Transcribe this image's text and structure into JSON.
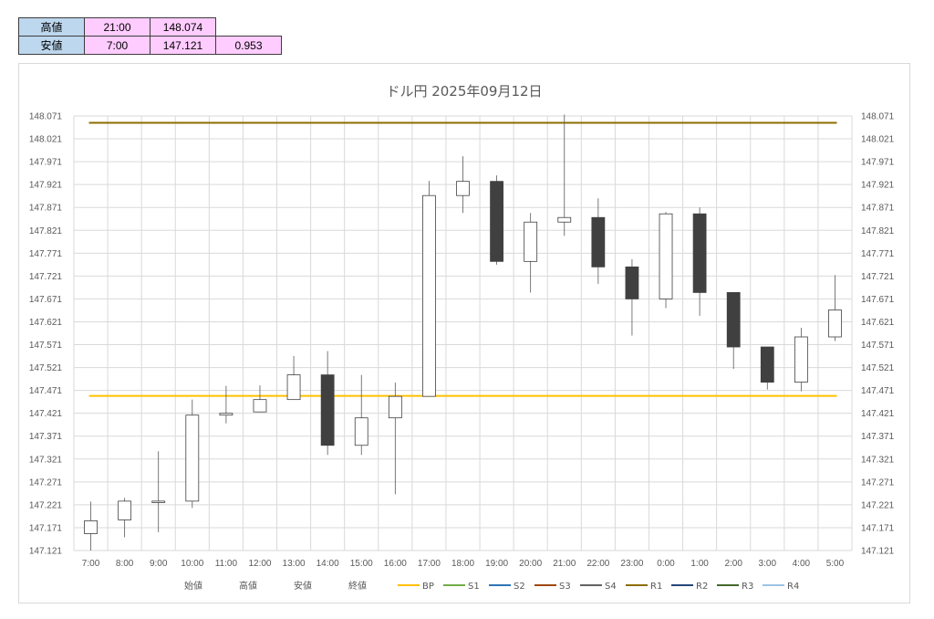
{
  "summary_table": {
    "rows": [
      {
        "label": "高値",
        "time": "21:00",
        "price": "148.074",
        "range": ""
      },
      {
        "label": "安値",
        "time": "7:00",
        "price": "147.121",
        "range": "0.953"
      }
    ]
  },
  "chart_data": {
    "type": "candlestick",
    "title": "ドル円  2025年09月12日",
    "ylim": [
      147.121,
      148.071
    ],
    "yticks": [
      "148.071",
      "148.021",
      "147.971",
      "147.921",
      "147.871",
      "147.821",
      "147.771",
      "147.721",
      "147.671",
      "147.621",
      "147.571",
      "147.521",
      "147.471",
      "147.421",
      "147.371",
      "147.321",
      "147.271",
      "147.221",
      "147.171",
      "147.121"
    ],
    "grid": true,
    "categories": [
      "7:00",
      "8:00",
      "9:00",
      "10:00",
      "11:00",
      "12:00",
      "13:00",
      "14:00",
      "15:00",
      "16:00",
      "17:00",
      "18:00",
      "19:00",
      "20:00",
      "21:00",
      "22:00",
      "23:00",
      "0:00",
      "1:00",
      "2:00",
      "3:00",
      "4:00",
      "5:00"
    ],
    "candles": [
      {
        "o": 147.158,
        "h": 147.228,
        "l": 147.121,
        "c": 147.186
      },
      {
        "o": 147.188,
        "h": 147.236,
        "l": 147.15,
        "c": 147.229
      },
      {
        "o": 147.229,
        "h": 147.338,
        "l": 147.161,
        "c": 147.229
      },
      {
        "o": 147.229,
        "h": 147.451,
        "l": 147.214,
        "c": 147.417
      },
      {
        "o": 147.417,
        "h": 147.481,
        "l": 147.399,
        "c": 147.421
      },
      {
        "o": 147.424,
        "h": 147.482,
        "l": 147.424,
        "c": 147.451
      },
      {
        "o": 147.451,
        "h": 147.546,
        "l": 147.451,
        "c": 147.505
      },
      {
        "o": 147.505,
        "h": 147.557,
        "l": 147.33,
        "c": 147.351
      },
      {
        "o": 147.351,
        "h": 147.505,
        "l": 147.33,
        "c": 147.411
      },
      {
        "o": 147.411,
        "h": 147.488,
        "l": 147.244,
        "c": 147.458
      },
      {
        "o": 147.458,
        "h": 147.929,
        "l": 147.458,
        "c": 147.897
      },
      {
        "o": 147.897,
        "h": 147.983,
        "l": 147.859,
        "c": 147.928
      },
      {
        "o": 147.928,
        "h": 147.941,
        "l": 147.746,
        "c": 147.753
      },
      {
        "o": 147.753,
        "h": 147.859,
        "l": 147.685,
        "c": 147.839
      },
      {
        "o": 147.839,
        "h": 148.074,
        "l": 147.809,
        "c": 147.849
      },
      {
        "o": 147.849,
        "h": 147.891,
        "l": 147.704,
        "c": 147.741
      },
      {
        "o": 147.741,
        "h": 147.758,
        "l": 147.591,
        "c": 147.671
      },
      {
        "o": 147.671,
        "h": 147.861,
        "l": 147.651,
        "c": 147.857
      },
      {
        "o": 147.857,
        "h": 147.871,
        "l": 147.634,
        "c": 147.685
      },
      {
        "o": 147.685,
        "h": 147.685,
        "l": 147.518,
        "c": 147.566
      },
      {
        "o": 147.566,
        "h": 147.566,
        "l": 147.473,
        "c": 147.489
      },
      {
        "o": 147.489,
        "h": 147.608,
        "l": 147.469,
        "c": 147.588
      },
      {
        "o": 147.588,
        "h": 147.723,
        "l": 147.579,
        "c": 147.647
      }
    ],
    "hlines": [
      {
        "name": "BP",
        "value": 147.459,
        "color": "#ffc000"
      },
      {
        "name": "R1",
        "value": 148.056,
        "color": "#8c6d00"
      }
    ],
    "up_color": "#ffffff",
    "down_color": "#404040",
    "legend": [
      {
        "name": "始値",
        "color": ""
      },
      {
        "name": "高値",
        "color": ""
      },
      {
        "name": "安値",
        "color": ""
      },
      {
        "name": "終値",
        "color": ""
      },
      {
        "name": "BP",
        "color": "#ffc000"
      },
      {
        "name": "S1",
        "color": "#70ad47"
      },
      {
        "name": "S2",
        "color": "#2e75b6"
      },
      {
        "name": "S3",
        "color": "#9e480e"
      },
      {
        "name": "S4",
        "color": "#636363"
      },
      {
        "name": "R1",
        "color": "#8c6d00"
      },
      {
        "name": "R2",
        "color": "#264478"
      },
      {
        "name": "R3",
        "color": "#43682b"
      },
      {
        "name": "R4",
        "color": "#9dc3e6"
      }
    ],
    "legend_position": "bottom"
  }
}
